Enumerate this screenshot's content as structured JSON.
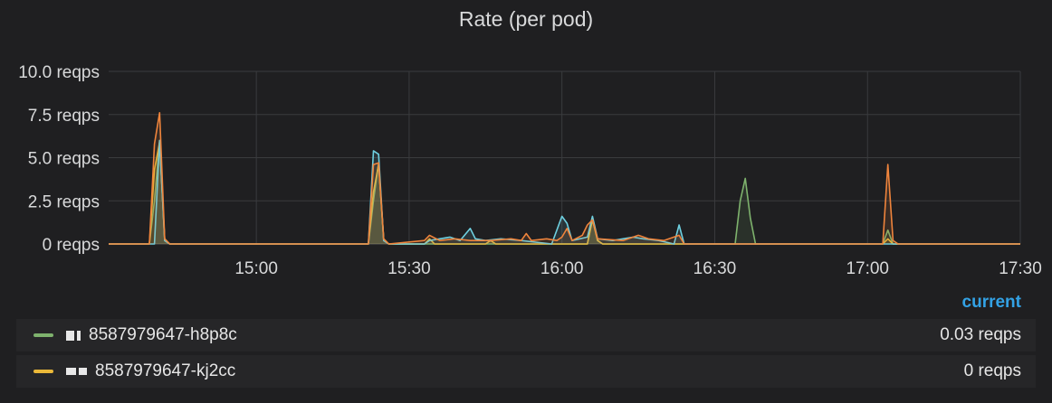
{
  "panel": {
    "title": "Rate (per pod)",
    "legend_header": "current"
  },
  "legend": [
    {
      "name": "8587979647-h8p8c",
      "value": "0.03 reqps",
      "color": "#7eb26d"
    },
    {
      "name": "8587979647-kj2cc",
      "value": "0 reqps",
      "color": "#eab839"
    }
  ],
  "chart_data": {
    "type": "line",
    "title": "Rate (per pod)",
    "x_unit": "time (HH:MM)",
    "xlim": [
      "14:31",
      "17:30"
    ],
    "ylim": [
      0,
      10
    ],
    "grid": true,
    "legend_position": "bottom",
    "x_ticks": [
      "15:00",
      "15:30",
      "16:00",
      "16:30",
      "17:00",
      "17:30"
    ],
    "y_ticks": [
      {
        "value": 0,
        "label": "0 reqps"
      },
      {
        "value": 2.5,
        "label": "2.5 reqps"
      },
      {
        "value": 5,
        "label": "5.0 reqps"
      },
      {
        "value": 7.5,
        "label": "7.5 reqps"
      },
      {
        "value": 10,
        "label": "10.0 reqps"
      }
    ],
    "series": [
      {
        "name": "8587979647-h8p8c",
        "color": "#7eb26d",
        "points": [
          [
            "14:31",
            0
          ],
          [
            "14:39",
            0
          ],
          [
            "14:40",
            2.5
          ],
          [
            "14:41",
            6.0
          ],
          [
            "14:42",
            0.2
          ],
          [
            "14:43",
            0
          ],
          [
            "15:22",
            0
          ],
          [
            "15:23",
            2.5
          ],
          [
            "15:24",
            4.7
          ],
          [
            "15:25",
            0.2
          ],
          [
            "15:26",
            0
          ],
          [
            "16:05",
            0
          ],
          [
            "16:06",
            1.5
          ],
          [
            "16:07",
            0.2
          ],
          [
            "16:08",
            0
          ],
          [
            "16:34",
            0
          ],
          [
            "16:35",
            2.5
          ],
          [
            "16:36",
            3.8
          ],
          [
            "16:37",
            1.5
          ],
          [
            "16:38",
            0
          ],
          [
            "17:03",
            0
          ],
          [
            "17:04",
            0.8
          ],
          [
            "17:05",
            0
          ],
          [
            "17:30",
            0
          ]
        ]
      },
      {
        "name": "8587979647-kj2cc",
        "color": "#eab839",
        "points": [
          [
            "14:31",
            0
          ],
          [
            "14:39",
            0
          ],
          [
            "14:40",
            4.3
          ],
          [
            "14:41",
            5.9
          ],
          [
            "14:42",
            0.3
          ],
          [
            "14:43",
            0
          ],
          [
            "15:22",
            0
          ],
          [
            "15:23",
            3.0
          ],
          [
            "15:24",
            4.6
          ],
          [
            "15:25",
            0.3
          ],
          [
            "15:26",
            0
          ],
          [
            "15:33",
            0
          ],
          [
            "15:34",
            0.3
          ],
          [
            "15:35",
            0
          ],
          [
            "15:45",
            0
          ],
          [
            "15:46",
            0.2
          ],
          [
            "15:47",
            0
          ],
          [
            "16:05",
            0
          ],
          [
            "16:06",
            1.4
          ],
          [
            "16:07",
            0.2
          ],
          [
            "16:08",
            0
          ],
          [
            "17:03",
            0
          ],
          [
            "17:04",
            0.3
          ],
          [
            "17:05",
            0
          ],
          [
            "17:30",
            0
          ]
        ]
      },
      {
        "name": "",
        "color": "#6ed0e0",
        "points": [
          [
            "14:31",
            0
          ],
          [
            "14:40",
            0
          ],
          [
            "14:41",
            6.0
          ],
          [
            "14:42",
            0.2
          ],
          [
            "14:43",
            0
          ],
          [
            "15:22",
            0
          ],
          [
            "15:23",
            5.4
          ],
          [
            "15:24",
            5.2
          ],
          [
            "15:25",
            0.2
          ],
          [
            "15:26",
            0
          ],
          [
            "15:33",
            0
          ],
          [
            "15:34",
            0.2
          ],
          [
            "15:36",
            0.3
          ],
          [
            "15:38",
            0.4
          ],
          [
            "15:40",
            0.2
          ],
          [
            "15:42",
            0.9
          ],
          [
            "15:43",
            0.3
          ],
          [
            "15:45",
            0.2
          ],
          [
            "15:48",
            0.3
          ],
          [
            "15:52",
            0.2
          ],
          [
            "15:58",
            0
          ],
          [
            "16:00",
            1.6
          ],
          [
            "16:01",
            1.2
          ],
          [
            "16:02",
            0.2
          ],
          [
            "16:05",
            0.4
          ],
          [
            "16:06",
            1.6
          ],
          [
            "16:07",
            0.3
          ],
          [
            "16:10",
            0.2
          ],
          [
            "16:14",
            0.4
          ],
          [
            "16:16",
            0.3
          ],
          [
            "16:19",
            0.2
          ],
          [
            "16:22",
            0
          ],
          [
            "16:23",
            1.1
          ],
          [
            "16:24",
            0
          ],
          [
            "17:30",
            0
          ]
        ]
      },
      {
        "name": "",
        "color": "#ef843c",
        "points": [
          [
            "14:31",
            0
          ],
          [
            "14:39",
            0
          ],
          [
            "14:40",
            5.8
          ],
          [
            "14:41",
            7.6
          ],
          [
            "14:42",
            0.3
          ],
          [
            "14:43",
            0
          ],
          [
            "15:22",
            0
          ],
          [
            "15:23",
            4.6
          ],
          [
            "15:24",
            4.7
          ],
          [
            "15:25",
            0.3
          ],
          [
            "15:26",
            0
          ],
          [
            "15:33",
            0.2
          ],
          [
            "15:34",
            0.5
          ],
          [
            "15:36",
            0.2
          ],
          [
            "15:39",
            0.3
          ],
          [
            "15:42",
            0.2
          ],
          [
            "15:46",
            0.2
          ],
          [
            "15:50",
            0.3
          ],
          [
            "15:52",
            0.2
          ],
          [
            "15:53",
            0.6
          ],
          [
            "15:54",
            0.2
          ],
          [
            "15:57",
            0.3
          ],
          [
            "15:59",
            0.2
          ],
          [
            "16:00",
            0.4
          ],
          [
            "16:01",
            0.9
          ],
          [
            "16:02",
            0.2
          ],
          [
            "16:04",
            0.5
          ],
          [
            "16:05",
            1.1
          ],
          [
            "16:06",
            1.4
          ],
          [
            "16:07",
            0.3
          ],
          [
            "16:12",
            0.2
          ],
          [
            "16:15",
            0.5
          ],
          [
            "16:17",
            0.3
          ],
          [
            "16:20",
            0.2
          ],
          [
            "16:23",
            0.5
          ],
          [
            "16:24",
            0
          ],
          [
            "17:03",
            0
          ],
          [
            "17:04",
            4.6
          ],
          [
            "17:05",
            0.2
          ],
          [
            "17:06",
            0
          ],
          [
            "17:30",
            0
          ]
        ]
      }
    ]
  }
}
